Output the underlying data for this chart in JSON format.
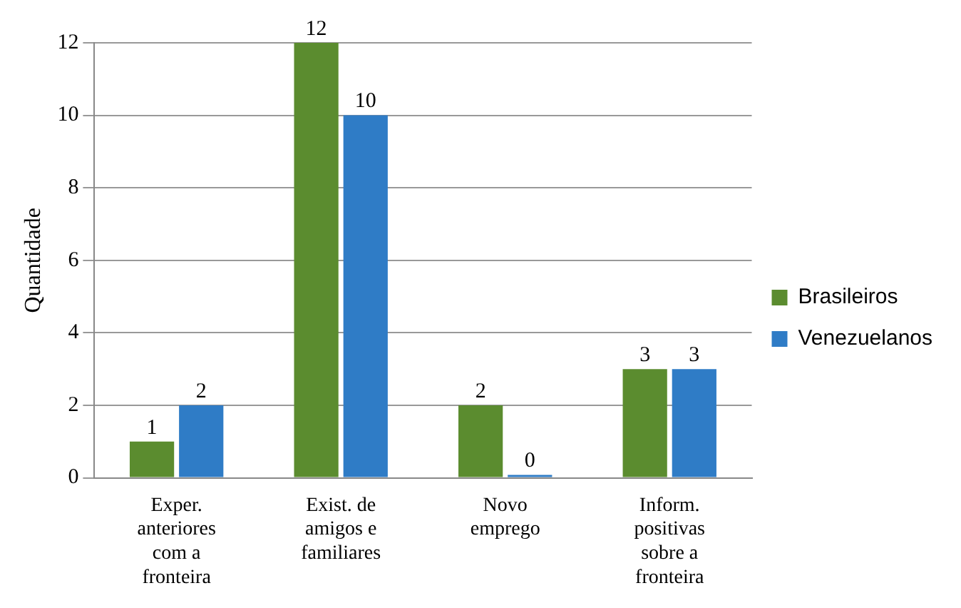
{
  "chart_data": {
    "type": "bar",
    "ylabel": "Quantidade",
    "categories": [
      "Exper. anteriores com a fronteira",
      "Exist. de amigos e familiares",
      "Novo emprego",
      "Inform. positivas sobre a fronteira"
    ],
    "series": [
      {
        "name": "Brasileiros",
        "color": "#5b8c2f",
        "values": [
          1,
          12,
          2,
          3
        ]
      },
      {
        "name": "Venezuelanos",
        "color": "#2f7cc6",
        "values": [
          2,
          10,
          0,
          3
        ]
      }
    ],
    "ylim": [
      0,
      12
    ],
    "yticks": [
      0,
      2,
      4,
      6,
      8,
      10,
      12
    ],
    "grid": "y",
    "legend": "right",
    "data_labels": true
  }
}
